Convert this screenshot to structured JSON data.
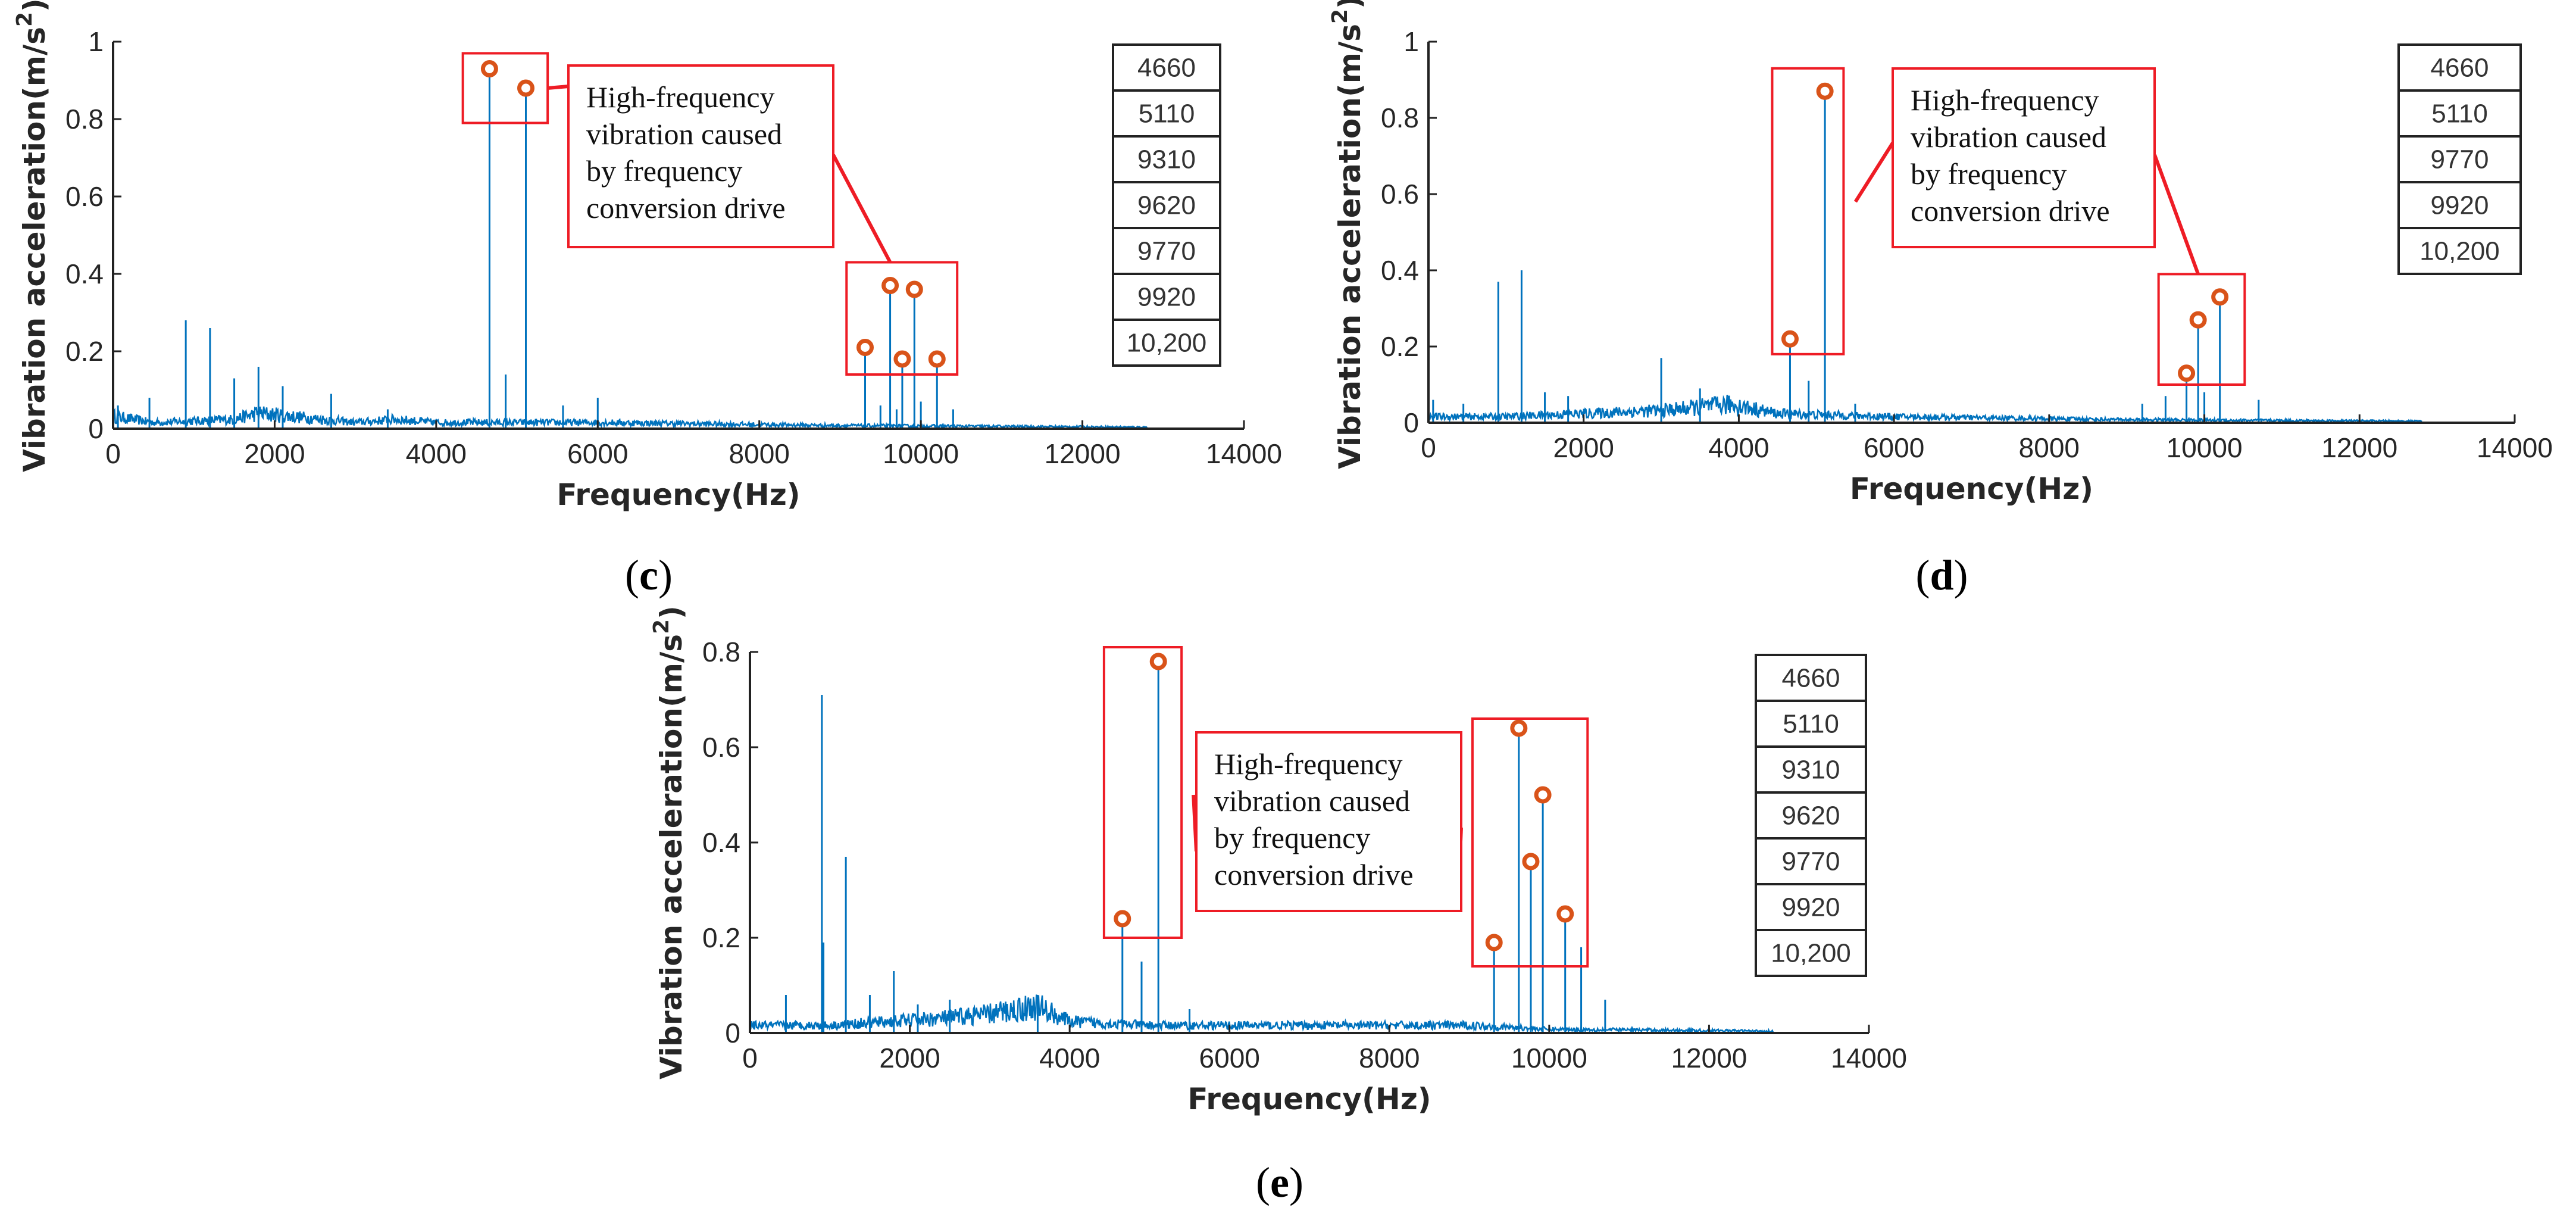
{
  "chart_data": [
    {
      "type": "line",
      "panel": "c",
      "title": "",
      "xlabel": "Frequency(Hz)",
      "ylabel": "Vibration acceleration(m/s",
      "ylabel_sup": "2",
      "ylabel_close": ")",
      "xlim": [
        0,
        14000
      ],
      "ylim": [
        0,
        1
      ],
      "xticks": [
        0,
        2000,
        4000,
        6000,
        8000,
        10000,
        12000,
        14000
      ],
      "xtick_labels": [
        "0",
        "2000",
        "4000",
        "6000",
        "8000",
        "10000",
        "12000",
        "14000"
      ],
      "yticks": [
        0,
        0.2,
        0.4,
        0.6,
        0.8,
        1
      ],
      "ytick_labels": [
        "0",
        "0.2",
        "0.4",
        "0.6",
        "0.8",
        "1"
      ],
      "signal_end_hz": 12800,
      "baseline": [
        [
          0,
          0.04
        ],
        [
          500,
          0.02
        ],
        [
          1500,
          0.03
        ],
        [
          1800,
          0.05
        ],
        [
          3000,
          0.02
        ],
        [
          3500,
          0.03
        ],
        [
          4000,
          0.02
        ],
        [
          6000,
          0.02
        ],
        [
          9000,
          0.01
        ],
        [
          12800,
          0.005
        ]
      ],
      "spikes": [
        [
          60,
          0.06
        ],
        [
          450,
          0.08
        ],
        [
          900,
          0.28
        ],
        [
          1200,
          0.26
        ],
        [
          1500,
          0.13
        ],
        [
          1800,
          0.16
        ],
        [
          2100,
          0.11
        ],
        [
          2700,
          0.09
        ],
        [
          3400,
          0.05
        ],
        [
          4860,
          0.14
        ],
        [
          5570,
          0.06
        ],
        [
          6000,
          0.08
        ],
        [
          9500,
          0.06
        ],
        [
          9700,
          0.05
        ],
        [
          10000,
          0.07
        ],
        [
          10400,
          0.05
        ]
      ],
      "highlight_peaks": [
        [
          4660,
          0.93
        ],
        [
          5110,
          0.88
        ],
        [
          9310,
          0.21
        ],
        [
          9620,
          0.37
        ],
        [
          9770,
          0.18
        ],
        [
          9920,
          0.36
        ],
        [
          10200,
          0.18
        ]
      ],
      "highlight_groups": [
        {
          "xmin": 4330,
          "xmax": 5380,
          "ymin": 0.79,
          "ymax": 0.97
        },
        {
          "xmin": 9080,
          "xmax": 10450,
          "ymin": 0.14,
          "ymax": 0.43
        }
      ],
      "callout": {
        "lines": [
          "High-frequency",
          "vibration caused",
          "by frequency",
          "conversion drive"
        ],
        "placement": "center-top"
      },
      "legend": [
        "4660",
        "5110",
        "9310",
        "9620",
        "9770",
        "9920",
        "10,200"
      ],
      "legend_location": "right"
    },
    {
      "type": "line",
      "panel": "d",
      "title": "",
      "xlabel": "Frequency(Hz)",
      "ylabel": "Vibration acceleration(m/s",
      "ylabel_sup": "2",
      "ylabel_close": ")",
      "xlim": [
        0,
        14000
      ],
      "ylim": [
        0,
        1
      ],
      "xticks": [
        0,
        2000,
        4000,
        6000,
        8000,
        10000,
        12000,
        14000
      ],
      "xtick_labels": [
        "0",
        "2000",
        "4000",
        "6000",
        "8000",
        "10000",
        "12000",
        "14000"
      ],
      "yticks": [
        0,
        0.2,
        0.4,
        0.6,
        0.8,
        1
      ],
      "ytick_labels": [
        "0",
        "0.2",
        "0.4",
        "0.6",
        "0.8",
        "1"
      ],
      "signal_end_hz": 12800,
      "baseline": [
        [
          0,
          0.02
        ],
        [
          1000,
          0.02
        ],
        [
          2000,
          0.03
        ],
        [
          3000,
          0.04
        ],
        [
          3900,
          0.06
        ],
        [
          4500,
          0.03
        ],
        [
          6000,
          0.02
        ],
        [
          9000,
          0.01
        ],
        [
          12800,
          0.005
        ]
      ],
      "spikes": [
        [
          60,
          0.06
        ],
        [
          450,
          0.05
        ],
        [
          900,
          0.37
        ],
        [
          1200,
          0.4
        ],
        [
          1500,
          0.08
        ],
        [
          1800,
          0.07
        ],
        [
          3000,
          0.17
        ],
        [
          3500,
          0.09
        ],
        [
          4900,
          0.11
        ],
        [
          5500,
          0.05
        ],
        [
          9200,
          0.05
        ],
        [
          9500,
          0.07
        ],
        [
          10000,
          0.08
        ],
        [
          10700,
          0.06
        ]
      ],
      "highlight_peaks": [
        [
          4660,
          0.22
        ],
        [
          5110,
          0.87
        ],
        [
          9770,
          0.13
        ],
        [
          9920,
          0.27
        ],
        [
          10200,
          0.33
        ]
      ],
      "highlight_groups": [
        {
          "xmin": 4430,
          "xmax": 5350,
          "ymin": 0.18,
          "ymax": 0.93
        },
        {
          "xmin": 9410,
          "xmax": 10520,
          "ymin": 0.1,
          "ymax": 0.39
        }
      ],
      "callout": {
        "lines": [
          "High-frequency",
          "vibration caused",
          "by frequency",
          "conversion drive"
        ],
        "placement": "center-top"
      },
      "legend": [
        "4660",
        "5110",
        "9770",
        "9920",
        "10,200"
      ],
      "legend_location": "right"
    },
    {
      "type": "line",
      "panel": "e",
      "title": "",
      "xlabel": "Frequency(Hz)",
      "ylabel": "Vibration acceleration(m/s",
      "ylabel_sup": "2",
      "ylabel_close": ")",
      "xlim": [
        0,
        14000
      ],
      "ylim": [
        0,
        0.8
      ],
      "xticks": [
        0,
        2000,
        4000,
        6000,
        8000,
        10000,
        12000,
        14000
      ],
      "xtick_labels": [
        "0",
        "2000",
        "4000",
        "6000",
        "8000",
        "10000",
        "12000",
        "14000"
      ],
      "yticks": [
        0,
        0.2,
        0.4,
        0.6,
        0.8
      ],
      "ytick_labels": [
        "0",
        "0.2",
        "0.4",
        "0.6",
        "0.8"
      ],
      "signal_end_hz": 12800,
      "baseline": [
        [
          0,
          0.02
        ],
        [
          1000,
          0.02
        ],
        [
          2500,
          0.04
        ],
        [
          3000,
          0.05
        ],
        [
          3600,
          0.07
        ],
        [
          4000,
          0.03
        ],
        [
          5000,
          0.02
        ],
        [
          9000,
          0.02
        ],
        [
          10000,
          0.01
        ],
        [
          12800,
          0.005
        ]
      ],
      "spikes": [
        [
          450,
          0.08
        ],
        [
          900,
          0.71
        ],
        [
          920,
          0.19
        ],
        [
          1200,
          0.37
        ],
        [
          1500,
          0.08
        ],
        [
          1800,
          0.13
        ],
        [
          2100,
          0.06
        ],
        [
          2500,
          0.07
        ],
        [
          3600,
          0.08
        ],
        [
          4900,
          0.15
        ],
        [
          5500,
          0.05
        ],
        [
          10400,
          0.18
        ],
        [
          10700,
          0.07
        ]
      ],
      "highlight_peaks": [
        [
          4660,
          0.24
        ],
        [
          5110,
          0.78
        ],
        [
          9310,
          0.19
        ],
        [
          9620,
          0.64
        ],
        [
          9770,
          0.36
        ],
        [
          9920,
          0.5
        ],
        [
          10200,
          0.25
        ]
      ],
      "highlight_groups": [
        {
          "xmin": 4430,
          "xmax": 5400,
          "ymin": 0.2,
          "ymax": 0.81
        },
        {
          "xmin": 9040,
          "xmax": 10480,
          "ymin": 0.14,
          "ymax": 0.66
        }
      ],
      "callout": {
        "lines": [
          "High-frequency",
          "vibration caused",
          "by frequency",
          "conversion drive"
        ],
        "placement": "center"
      },
      "legend": [
        "4660",
        "5110",
        "9310",
        "9620",
        "9770",
        "9920",
        "10,200"
      ],
      "legend_location": "right"
    }
  ],
  "colors": {
    "signal": "#0072BD",
    "marker": "#D95319",
    "highlight": "#EE1C25"
  }
}
